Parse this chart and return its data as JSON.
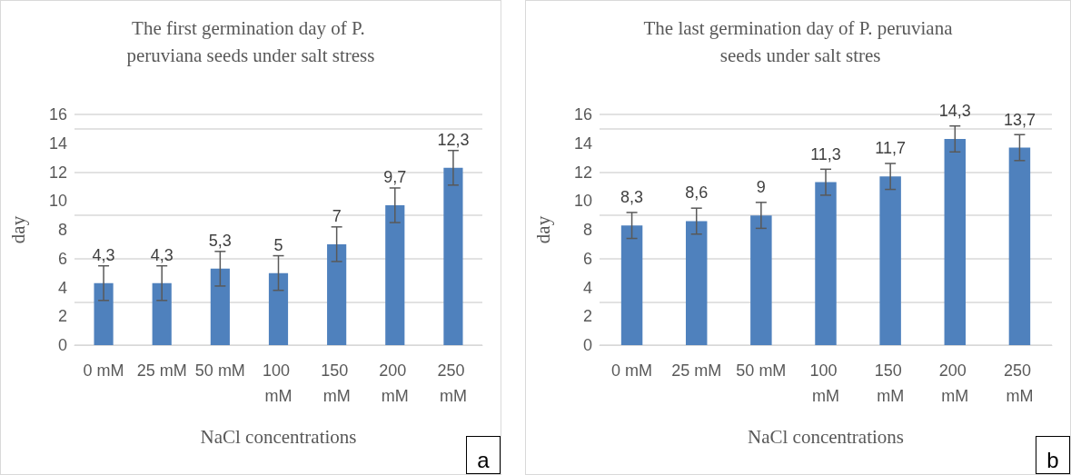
{
  "chart_data": [
    {
      "type": "bar",
      "title": "The first germination day of P. peruviana seeds under salt stress",
      "xlabel": "NaCl concentrations",
      "ylabel": "day",
      "categories": [
        "0 mM",
        "25 mM",
        "50 mM",
        "100 mM",
        "150 mM",
        "200 mM",
        "250 mM"
      ],
      "values": [
        4.3,
        4.3,
        5.3,
        5,
        7,
        9.7,
        12.3
      ],
      "color": "#4f81bd",
      "errors": [
        1.2,
        1.2,
        1.2,
        1.2,
        1.2,
        1.2,
        1.2
      ],
      "value_labels": [
        "4,3",
        "4,3",
        "5,3",
        "5",
        "7",
        "9,7",
        "12,3"
      ],
      "ylim": [
        0,
        16
      ],
      "yticks": [
        0,
        2,
        4,
        6,
        8,
        10,
        12,
        14,
        16
      ],
      "grid": "y",
      "annotations": [
        "a"
      ]
    },
    {
      "type": "bar",
      "title": "The last germination day of P. peruviana seeds under salt stres",
      "xlabel": "NaCl concentrations",
      "ylabel": "day",
      "categories": [
        "0 mM",
        "25 mM",
        "50 mM",
        "100 mM",
        "150 mM",
        "200 mM",
        "250 mM"
      ],
      "values": [
        8.3,
        8.6,
        9,
        11.3,
        11.7,
        14.3,
        13.7
      ],
      "color": "#4f81bd",
      "errors": [
        0.9,
        0.9,
        0.9,
        0.9,
        0.9,
        0.9,
        0.9
      ],
      "value_labels": [
        "8,3",
        "8,6",
        "9",
        "11,3",
        "11,7",
        "14,3",
        "13,7"
      ],
      "ylim": [
        0,
        16
      ],
      "yticks": [
        0,
        2,
        4,
        6,
        8,
        10,
        12,
        14,
        16
      ],
      "grid": "y",
      "annotations": [
        "b"
      ]
    }
  ]
}
